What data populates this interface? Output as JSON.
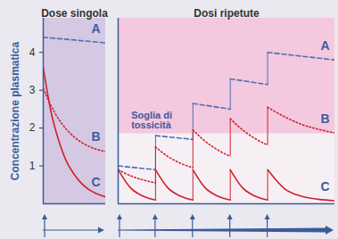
{
  "chart_data": [
    {
      "type": "line",
      "title": "Dose singola",
      "ylabel": "Concentrazione plasmatica",
      "xlim": [
        0,
        1.65
      ],
      "ylim": [
        0,
        4.9
      ],
      "yticks": [
        1,
        2,
        3,
        4
      ],
      "tick_labels": "y",
      "doses": [
        0
      ],
      "series": [
        {
          "name": "A",
          "color": "#4a6fb5",
          "line_style": "dashed",
          "x": [
            0,
            1.65
          ],
          "values": [
            4.4,
            4.25
          ]
        },
        {
          "name": "B",
          "color": "#d0202a",
          "line_style": "dotted",
          "x": [
            0,
            0.2,
            0.4,
            0.6,
            0.8,
            1.0,
            1.2,
            1.4,
            1.65
          ],
          "values": [
            3.05,
            2.6,
            2.25,
            1.98,
            1.78,
            1.63,
            1.52,
            1.44,
            1.38
          ]
        },
        {
          "name": "C",
          "color": "#d0202a",
          "line_style": "solid",
          "x": [
            0,
            0.2,
            0.4,
            0.6,
            0.8,
            1.0,
            1.2,
            1.4,
            1.65
          ],
          "values": [
            3.6,
            2.45,
            1.7,
            1.15,
            0.8,
            0.55,
            0.38,
            0.27,
            0.18
          ]
        }
      ]
    },
    {
      "type": "line",
      "title": "Dosi ripetute",
      "xlim": [
        0,
        5.8
      ],
      "ylim": [
        0,
        4.9
      ],
      "tick_labels": false,
      "threshold": {
        "value": 1.85,
        "label": "Soglia di tossicità"
      },
      "doses": [
        0,
        1,
        2,
        3,
        4
      ],
      "series": [
        {
          "name": "A",
          "color": "#4a6fb5",
          "line_style": "dashed",
          "x": [
            0,
            0,
            1,
            1,
            2,
            2,
            3,
            3,
            4,
            4,
            5.8
          ],
          "values": [
            0,
            1.0,
            0.9,
            1.8,
            1.7,
            2.65,
            2.5,
            3.3,
            3.15,
            4.0,
            3.8
          ]
        },
        {
          "name": "B",
          "color": "#d0202a",
          "line_style": "dotted",
          "x": [
            0,
            0.33,
            0.67,
            1,
            1,
            1.33,
            1.67,
            2,
            2,
            2.33,
            2.67,
            3,
            3,
            3.33,
            3.67,
            4,
            4,
            4.45,
            4.9,
            5.35,
            5.8
          ],
          "values": [
            0.9,
            0.74,
            0.63,
            0.55,
            1.5,
            1.25,
            1.07,
            0.95,
            1.95,
            1.65,
            1.42,
            1.25,
            2.25,
            1.95,
            1.72,
            1.55,
            2.55,
            2.3,
            2.1,
            1.97,
            1.87
          ]
        },
        {
          "name": "C",
          "color": "#d0202a",
          "line_style": "solid",
          "x": [
            0,
            0.33,
            0.67,
            1,
            1,
            1.33,
            1.67,
            2,
            2,
            2.33,
            2.67,
            3,
            3,
            3.33,
            3.67,
            4,
            4,
            4.45,
            4.9,
            5.35,
            5.8
          ],
          "values": [
            0.9,
            0.42,
            0.2,
            0.1,
            0.9,
            0.42,
            0.2,
            0.1,
            0.9,
            0.42,
            0.2,
            0.1,
            0.9,
            0.42,
            0.2,
            0.1,
            0.9,
            0.4,
            0.2,
            0.12,
            0.08
          ]
        }
      ]
    }
  ]
}
